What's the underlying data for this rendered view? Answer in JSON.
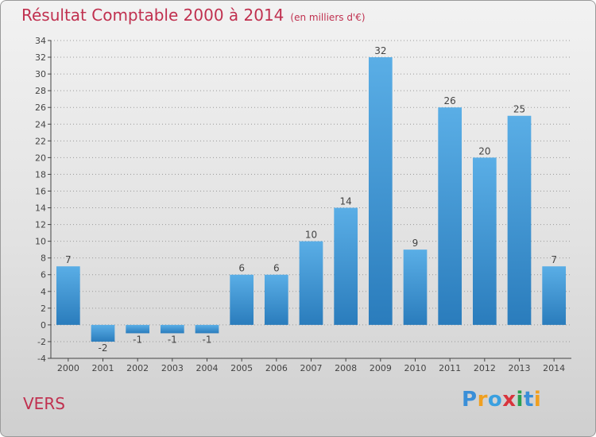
{
  "title": "Résultat Comptable 2000 à 2014",
  "subtitle": "(en milliers d'€)",
  "city": "VERS",
  "logo": {
    "text": "Proxiti",
    "letters": [
      {
        "ch": "P",
        "color": "#3a8fd8"
      },
      {
        "ch": "r",
        "color": "#f0a020"
      },
      {
        "ch": "o",
        "color": "#3aa0e0"
      },
      {
        "ch": "x",
        "color": "#d8343c"
      },
      {
        "ch": "i",
        "color": "#2aa050"
      },
      {
        "ch": "t",
        "color": "#3a8fd8"
      },
      {
        "ch": "i",
        "color": "#f0a020"
      }
    ]
  },
  "colors": {
    "bar": "#3e9ad8",
    "bar_light": "#5aaee6",
    "bar_dark": "#2a7cbc",
    "text": "#c0304f",
    "axis": "#444444",
    "grid": "#999999"
  },
  "chart_data": {
    "type": "bar",
    "categories": [
      "2000",
      "2001",
      "2002",
      "2003",
      "2004",
      "2005",
      "2006",
      "2007",
      "2008",
      "2009",
      "2010",
      "2011",
      "2012",
      "2013",
      "2014"
    ],
    "values": [
      7,
      -2,
      -1,
      -1,
      -1,
      6,
      6,
      10,
      14,
      32,
      9,
      26,
      20,
      25,
      7
    ],
    "data_labels": [
      "7",
      "-2",
      "-1",
      "-1",
      "-1",
      "6",
      "6",
      "10",
      "14",
      "32",
      "9",
      "26",
      "20",
      "25",
      "7"
    ],
    "ylim": [
      -4,
      34
    ],
    "yticks": [
      -4,
      -2,
      0,
      2,
      4,
      6,
      8,
      10,
      12,
      14,
      16,
      18,
      20,
      22,
      24,
      26,
      28,
      30,
      32,
      34
    ],
    "grid": true,
    "legend": false
  }
}
